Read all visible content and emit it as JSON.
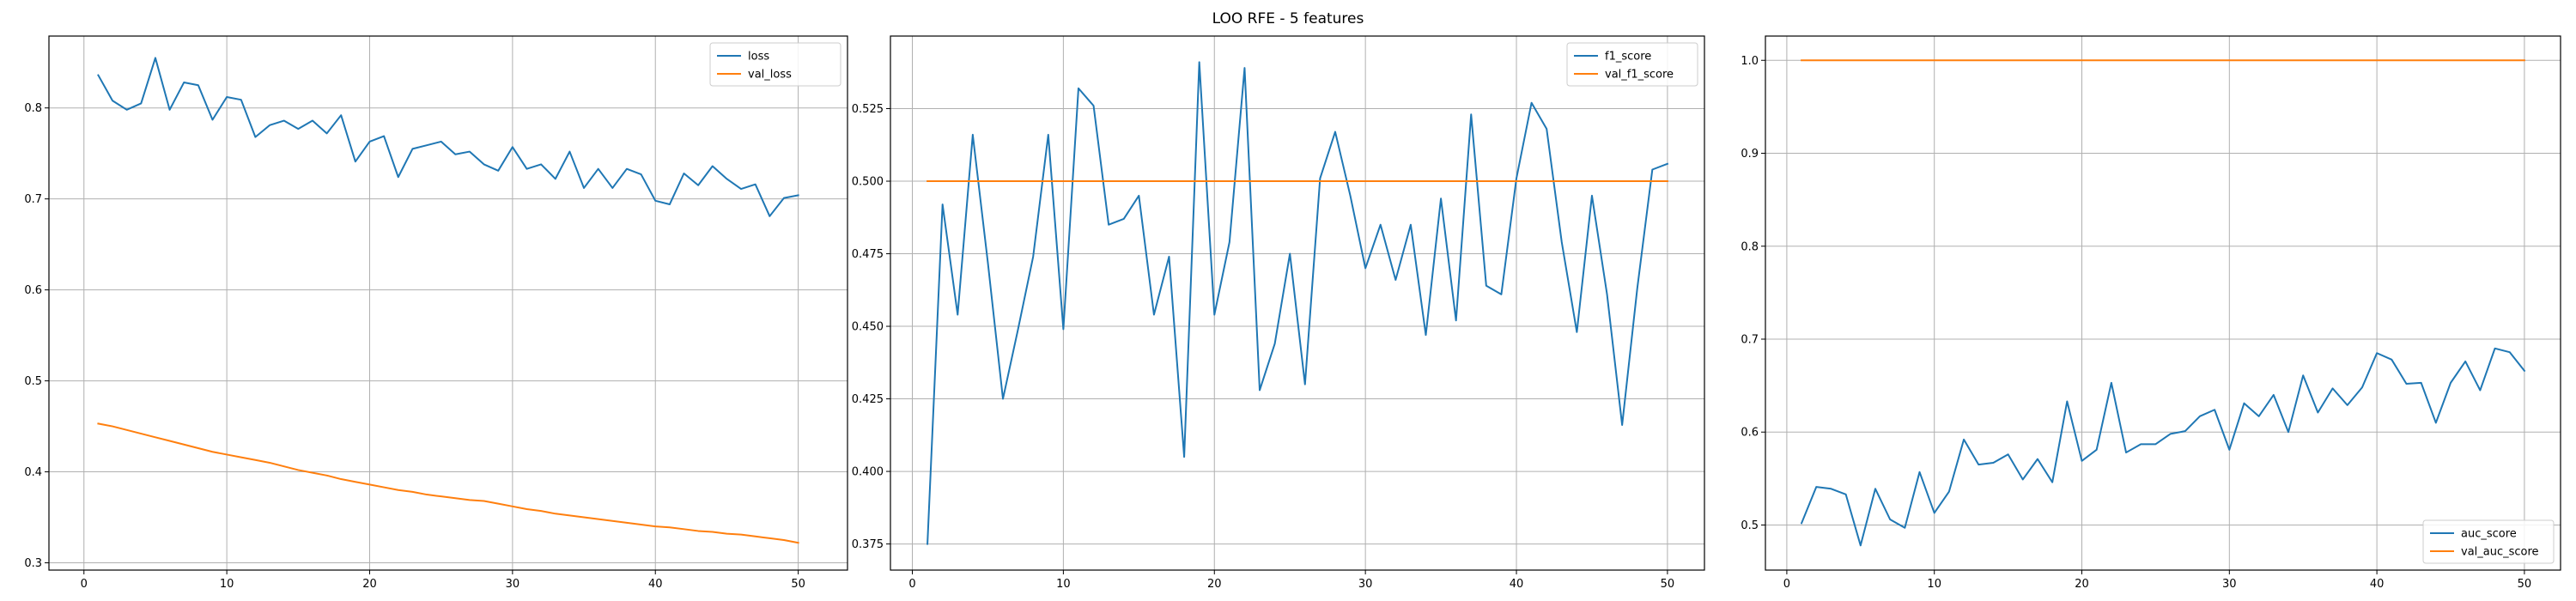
{
  "figure": {
    "title": "LOO RFE - 5 features"
  },
  "chart_data": [
    {
      "type": "line",
      "title": "",
      "xlabel": "",
      "ylabel": "",
      "xlim": [
        -2.45,
        53.45
      ],
      "ylim": [
        0.292,
        0.879
      ],
      "xticks": [
        0,
        10,
        20,
        30,
        40,
        50
      ],
      "yticks": [
        0.3,
        0.4,
        0.5,
        0.6,
        0.7,
        0.8
      ],
      "tick_labels_x": [
        "0",
        "10",
        "20",
        "30",
        "40",
        "50"
      ],
      "tick_labels_y": [
        "0.3",
        "0.4",
        "0.5",
        "0.6",
        "0.7",
        "0.8"
      ],
      "grid": true,
      "legend_position": "top-right",
      "x": [
        1,
        2,
        3,
        4,
        5,
        6,
        7,
        8,
        9,
        10,
        11,
        12,
        13,
        14,
        15,
        16,
        17,
        18,
        19,
        20,
        21,
        22,
        23,
        24,
        25,
        26,
        27,
        28,
        29,
        30,
        31,
        32,
        33,
        34,
        35,
        36,
        37,
        38,
        39,
        40,
        41,
        42,
        43,
        44,
        45,
        46,
        47,
        48,
        49,
        50
      ],
      "series": [
        {
          "name": "loss",
          "color": "#1f77b4",
          "values": [
            0.836,
            0.808,
            0.798,
            0.805,
            0.855,
            0.798,
            0.828,
            0.825,
            0.787,
            0.812,
            0.809,
            0.768,
            0.781,
            0.786,
            0.777,
            0.786,
            0.772,
            0.792,
            0.741,
            0.763,
            0.769,
            0.724,
            0.755,
            0.759,
            0.763,
            0.749,
            0.752,
            0.738,
            0.731,
            0.757,
            0.733,
            0.738,
            0.722,
            0.752,
            0.712,
            0.733,
            0.712,
            0.733,
            0.727,
            0.698,
            0.694,
            0.728,
            0.715,
            0.736,
            0.722,
            0.711,
            0.716,
            0.681,
            0.701,
            0.704
          ]
        },
        {
          "name": "val_loss",
          "color": "#ff7f0e",
          "values": [
            0.453,
            0.45,
            0.446,
            0.442,
            0.438,
            0.434,
            0.43,
            0.426,
            0.422,
            0.419,
            0.416,
            0.413,
            0.41,
            0.406,
            0.402,
            0.399,
            0.396,
            0.392,
            0.389,
            0.386,
            0.383,
            0.38,
            0.378,
            0.375,
            0.373,
            0.371,
            0.369,
            0.368,
            0.365,
            0.362,
            0.359,
            0.357,
            0.354,
            0.352,
            0.35,
            0.348,
            0.346,
            0.344,
            0.342,
            0.34,
            0.339,
            0.337,
            0.335,
            0.334,
            0.332,
            0.331,
            0.329,
            0.327,
            0.325,
            0.322
          ]
        }
      ]
    },
    {
      "type": "line",
      "title": "",
      "xlabel": "",
      "ylabel": "",
      "xlim": [
        -1.45,
        52.45
      ],
      "ylim": [
        0.366,
        0.55
      ],
      "xticks": [
        0,
        10,
        20,
        30,
        40,
        50
      ],
      "yticks": [
        0.375,
        0.4,
        0.425,
        0.45,
        0.475,
        0.5,
        0.525
      ],
      "tick_labels_x": [
        "0",
        "10",
        "20",
        "30",
        "40",
        "50"
      ],
      "tick_labels_y": [
        "0.375",
        "0.400",
        "0.425",
        "0.450",
        "0.475",
        "0.500",
        "0.525"
      ],
      "grid": true,
      "legend_position": "top-right",
      "x": [
        1,
        2,
        3,
        4,
        5,
        6,
        7,
        8,
        9,
        10,
        11,
        12,
        13,
        14,
        15,
        16,
        17,
        18,
        19,
        20,
        21,
        22,
        23,
        24,
        25,
        26,
        27,
        28,
        29,
        30,
        31,
        32,
        33,
        34,
        35,
        36,
        37,
        38,
        39,
        40,
        41,
        42,
        43,
        44,
        45,
        46,
        47,
        48,
        49,
        50
      ],
      "series": [
        {
          "name": "f1_score",
          "color": "#1f77b4",
          "values": [
            0.375,
            0.492,
            0.454,
            0.516,
            0.472,
            0.425,
            0.449,
            0.474,
            0.516,
            0.449,
            0.532,
            0.526,
            0.485,
            0.487,
            0.495,
            0.454,
            0.474,
            0.405,
            0.541,
            0.454,
            0.479,
            0.539,
            0.428,
            0.444,
            0.475,
            0.43,
            0.501,
            0.517,
            0.495,
            0.47,
            0.485,
            0.466,
            0.485,
            0.447,
            0.494,
            0.452,
            0.523,
            0.464,
            0.461,
            0.501,
            0.527,
            0.518,
            0.479,
            0.448,
            0.495,
            0.461,
            0.416,
            0.463,
            0.504,
            0.506
          ]
        },
        {
          "name": "val_f1_score",
          "color": "#ff7f0e",
          "values": [
            0.5,
            0.5,
            0.5,
            0.5,
            0.5,
            0.5,
            0.5,
            0.5,
            0.5,
            0.5,
            0.5,
            0.5,
            0.5,
            0.5,
            0.5,
            0.5,
            0.5,
            0.5,
            0.5,
            0.5,
            0.5,
            0.5,
            0.5,
            0.5,
            0.5,
            0.5,
            0.5,
            0.5,
            0.5,
            0.5,
            0.5,
            0.5,
            0.5,
            0.5,
            0.5,
            0.5,
            0.5,
            0.5,
            0.5,
            0.5,
            0.5,
            0.5,
            0.5,
            0.5,
            0.5,
            0.5,
            0.5,
            0.5,
            0.5,
            0.5
          ]
        }
      ]
    },
    {
      "type": "line",
      "title": "",
      "xlabel": "",
      "ylabel": "",
      "xlim": [
        -1.45,
        52.45
      ],
      "ylim": [
        0.4515,
        1.0261
      ],
      "xticks": [
        0,
        10,
        20,
        30,
        40,
        50
      ],
      "yticks": [
        0.5,
        0.6,
        0.7,
        0.8,
        0.9,
        1.0
      ],
      "tick_labels_x": [
        "0",
        "10",
        "20",
        "30",
        "40",
        "50"
      ],
      "tick_labels_y": [
        "0.5",
        "0.6",
        "0.7",
        "0.8",
        "0.9",
        "1.0"
      ],
      "grid": true,
      "legend_position": "bottom-right",
      "x": [
        1,
        2,
        3,
        4,
        5,
        6,
        7,
        8,
        9,
        10,
        11,
        12,
        13,
        14,
        15,
        16,
        17,
        18,
        19,
        20,
        21,
        22,
        23,
        24,
        25,
        26,
        27,
        28,
        29,
        30,
        31,
        32,
        33,
        34,
        35,
        36,
        37,
        38,
        39,
        40,
        41,
        42,
        43,
        44,
        45,
        46,
        47,
        48,
        49,
        50
      ],
      "series": [
        {
          "name": "auc_score",
          "color": "#1f77b4",
          "values": [
            0.502,
            0.541,
            0.539,
            0.533,
            0.478,
            0.539,
            0.506,
            0.497,
            0.557,
            0.513,
            0.536,
            0.592,
            0.565,
            0.567,
            0.576,
            0.549,
            0.571,
            0.546,
            0.633,
            0.569,
            0.581,
            0.653,
            0.578,
            0.587,
            0.587,
            0.598,
            0.601,
            0.617,
            0.624,
            0.581,
            0.631,
            0.617,
            0.64,
            0.6,
            0.661,
            0.621,
            0.647,
            0.629,
            0.648,
            0.685,
            0.678,
            0.652,
            0.653,
            0.61,
            0.653,
            0.676,
            0.645,
            0.69,
            0.686,
            0.666
          ]
        },
        {
          "name": "val_auc_score",
          "color": "#ff7f0e",
          "values": [
            1.0,
            1.0,
            1.0,
            1.0,
            1.0,
            1.0,
            1.0,
            1.0,
            1.0,
            1.0,
            1.0,
            1.0,
            1.0,
            1.0,
            1.0,
            1.0,
            1.0,
            1.0,
            1.0,
            1.0,
            1.0,
            1.0,
            1.0,
            1.0,
            1.0,
            1.0,
            1.0,
            1.0,
            1.0,
            1.0,
            1.0,
            1.0,
            1.0,
            1.0,
            1.0,
            1.0,
            1.0,
            1.0,
            1.0,
            1.0,
            1.0,
            1.0,
            1.0,
            1.0,
            1.0,
            1.0,
            1.0,
            1.0,
            1.0,
            1.0
          ]
        }
      ]
    }
  ]
}
